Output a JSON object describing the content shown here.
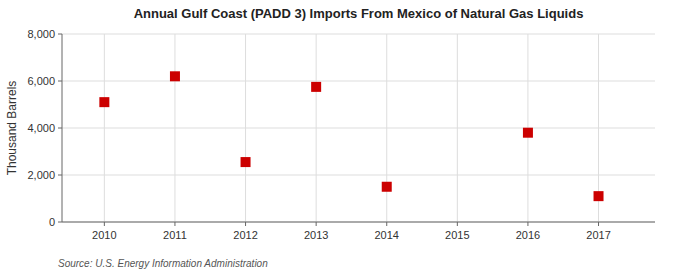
{
  "chart_data": {
    "type": "scatter",
    "title": "Annual Gulf Coast (PADD 3) Imports From Mexico of Natural Gas Liquids",
    "ylabel": "Thousand Barrels",
    "source": "Source: U.S. Energy Information Administration",
    "x": [
      2010,
      2011,
      2012,
      2013,
      2014,
      2016,
      2017
    ],
    "values": [
      5100,
      6200,
      2550,
      5750,
      1500,
      3800,
      1100
    ],
    "color": "#cc0000",
    "marker": "square",
    "xlim": [
      2009.4,
      2017.8
    ],
    "xticks": [
      2010,
      2011,
      2012,
      2013,
      2014,
      2015,
      2016,
      2017
    ],
    "ylim": [
      0,
      8000
    ],
    "yticks": [
      0,
      {
        "value": 2000,
        "label": "2,000"
      },
      {
        "value": 4000,
        "label": "4,000"
      },
      {
        "value": 6000,
        "label": "6,000"
      },
      {
        "value": 8000,
        "label": "8,000"
      }
    ],
    "grid": true
  }
}
